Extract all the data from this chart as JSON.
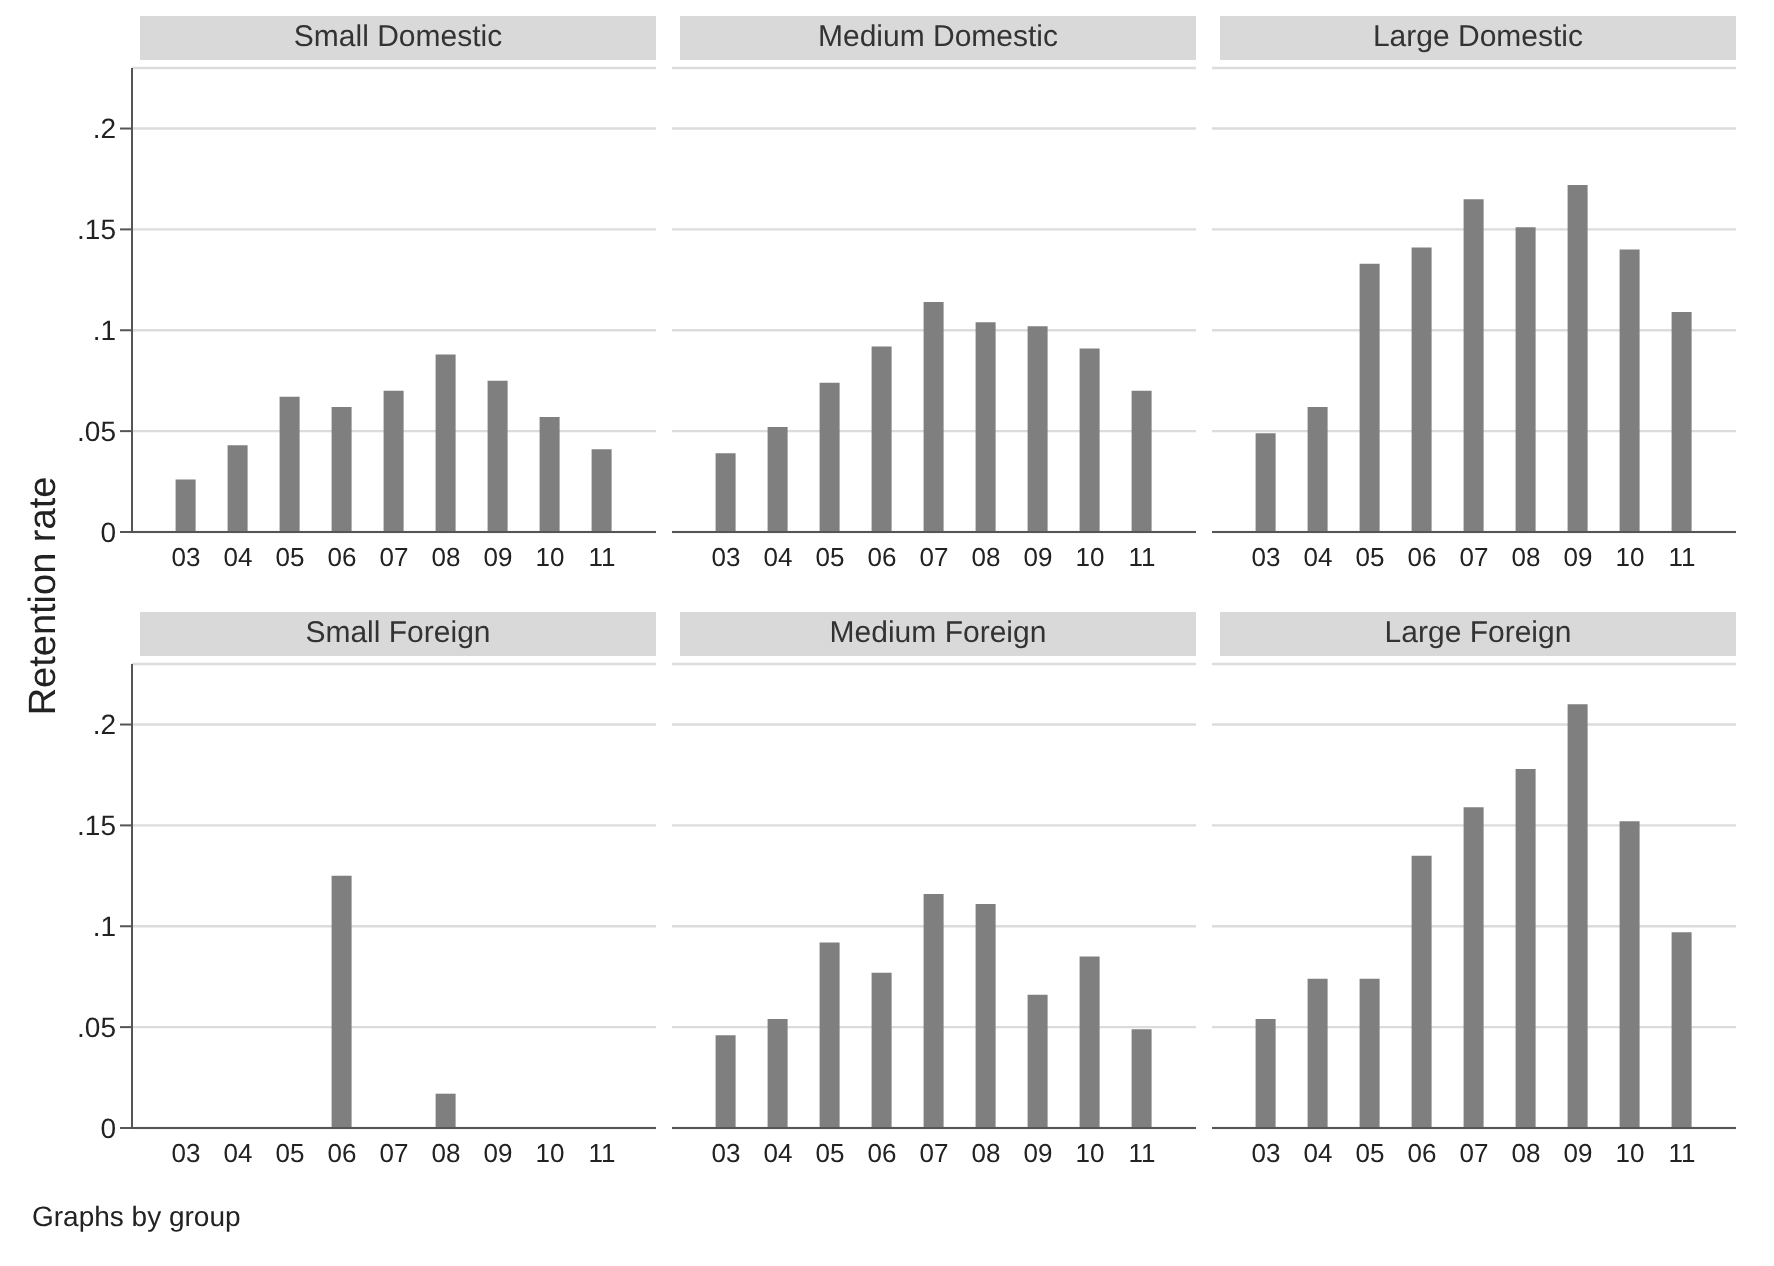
{
  "chart_data": [
    {
      "type": "bar",
      "title": "Small Domestic",
      "ylabel": "Retention rate",
      "categories": [
        "03",
        "04",
        "05",
        "06",
        "07",
        "08",
        "09",
        "10",
        "11"
      ],
      "values": [
        0.026,
        0.043,
        0.067,
        0.062,
        0.07,
        0.088,
        0.075,
        0.057,
        0.041
      ],
      "color": "#7f7f7f",
      "ylim": [
        0,
        0.23
      ],
      "yticks": [
        {
          "value": 0,
          "label": "0"
        },
        {
          "value": 0.05,
          "label": ".05"
        },
        {
          "value": 0.1,
          "label": ".1"
        },
        {
          "value": 0.15,
          "label": ".15"
        },
        {
          "value": 0.2,
          "label": ".2"
        }
      ],
      "grid": "y"
    },
    {
      "type": "bar",
      "title": "Medium Domestic",
      "categories": [
        "03",
        "04",
        "05",
        "06",
        "07",
        "08",
        "09",
        "10",
        "11"
      ],
      "values": [
        0.039,
        0.052,
        0.074,
        0.092,
        0.114,
        0.104,
        0.102,
        0.091,
        0.07
      ],
      "color": "#7f7f7f",
      "ylim": [
        0,
        0.23
      ],
      "yticks": [
        0,
        0.05,
        0.1,
        0.15,
        0.2
      ],
      "grid": "y",
      "tick_labels": "x"
    },
    {
      "type": "bar",
      "title": "Large Domestic",
      "categories": [
        "03",
        "04",
        "05",
        "06",
        "07",
        "08",
        "09",
        "10",
        "11"
      ],
      "values": [
        0.049,
        0.062,
        0.133,
        0.141,
        0.165,
        0.151,
        0.172,
        0.14,
        0.109
      ],
      "color": "#7f7f7f",
      "ylim": [
        0,
        0.23
      ],
      "yticks": [
        0,
        0.05,
        0.1,
        0.15,
        0.2
      ],
      "grid": "y",
      "tick_labels": "x"
    },
    {
      "type": "bar",
      "title": "Small Foreign",
      "categories": [
        "03",
        "04",
        "05",
        "06",
        "07",
        "08",
        "09",
        "10",
        "11"
      ],
      "values": [
        0,
        0,
        0,
        0.125,
        0,
        0.017,
        0,
        0,
        0
      ],
      "color": "#7f7f7f",
      "ylim": [
        0,
        0.23
      ],
      "yticks": [
        {
          "value": 0,
          "label": "0"
        },
        {
          "value": 0.05,
          "label": ".05"
        },
        {
          "value": 0.1,
          "label": ".1"
        },
        {
          "value": 0.15,
          "label": ".15"
        },
        {
          "value": 0.2,
          "label": ".2"
        }
      ],
      "grid": "y",
      "annotations": [
        "Graphs by group"
      ]
    },
    {
      "type": "bar",
      "title": "Medium Foreign",
      "categories": [
        "03",
        "04",
        "05",
        "06",
        "07",
        "08",
        "09",
        "10",
        "11"
      ],
      "values": [
        0.046,
        0.054,
        0.092,
        0.077,
        0.116,
        0.111,
        0.066,
        0.085,
        0.049
      ],
      "color": "#7f7f7f",
      "ylim": [
        0,
        0.23
      ],
      "yticks": [
        0,
        0.05,
        0.1,
        0.15,
        0.2
      ],
      "grid": "y",
      "tick_labels": "x"
    },
    {
      "type": "bar",
      "title": "Large Foreign",
      "categories": [
        "03",
        "04",
        "05",
        "06",
        "07",
        "08",
        "09",
        "10",
        "11"
      ],
      "values": [
        0.054,
        0.074,
        0.074,
        0.135,
        0.159,
        0.178,
        0.21,
        0.152,
        0.097
      ],
      "color": "#7f7f7f",
      "ylim": [
        0,
        0.23
      ],
      "yticks": [
        0,
        0.05,
        0.1,
        0.15,
        0.2
      ],
      "grid": "y",
      "tick_labels": "x"
    }
  ]
}
